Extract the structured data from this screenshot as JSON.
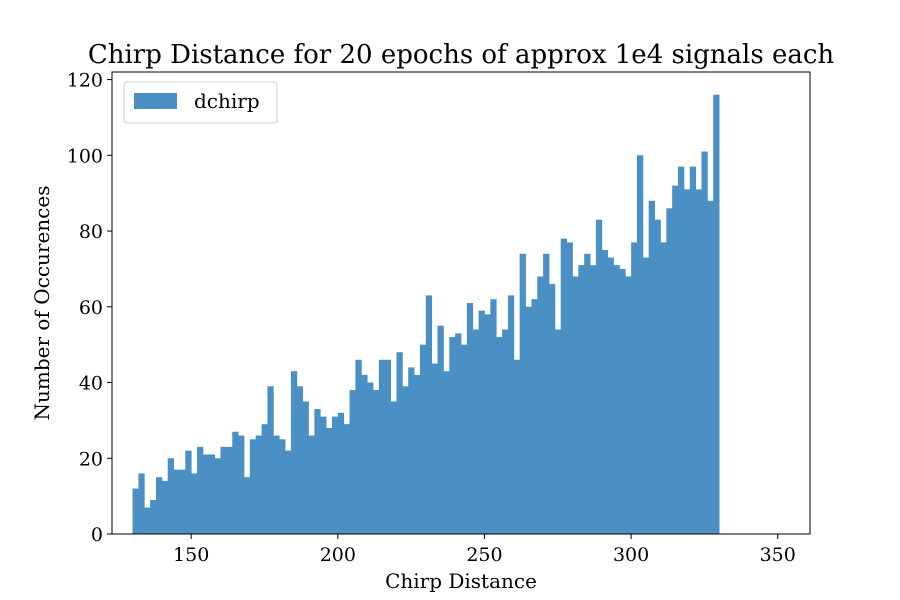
{
  "chart_data": {
    "type": "bar",
    "title": "Chirp Distance for 20 epochs of approx 1e4 signals each",
    "xlabel": "Chirp Distance",
    "ylabel": "Number of Occurences",
    "xlim": [
      123,
      361
    ],
    "ylim": [
      0,
      122
    ],
    "x_ticks": [
      "150",
      "200",
      "250",
      "300",
      "350"
    ],
    "x_tick_values": [
      150,
      200,
      250,
      300,
      350
    ],
    "y_ticks": [
      "0",
      "20",
      "40",
      "60",
      "80",
      "100",
      "120"
    ],
    "y_tick_values": [
      0,
      20,
      40,
      60,
      80,
      100,
      120
    ],
    "legend": {
      "position": "top-left",
      "entries": [
        "dchirp"
      ]
    },
    "grid": false,
    "series": [
      {
        "name": "dchirp",
        "color": "#4a90c4",
        "bin_start": 130,
        "bin_width": 2,
        "values": [
          12,
          16,
          7,
          9,
          15,
          14,
          20,
          17,
          17,
          22,
          16,
          23,
          21,
          21,
          20,
          23,
          23,
          27,
          26,
          15,
          25,
          26,
          29,
          39,
          26,
          25,
          22,
          43,
          39,
          35,
          26,
          33,
          31,
          28,
          31,
          32,
          29,
          38,
          46,
          42,
          40,
          38,
          46,
          46,
          35,
          48,
          39,
          44,
          42,
          50,
          63,
          45,
          55,
          43,
          52,
          53,
          50,
          61,
          54,
          59,
          58,
          62,
          52,
          54,
          63,
          46,
          74,
          60,
          62,
          68,
          74,
          66,
          54,
          78,
          77,
          68,
          71,
          74,
          71,
          83,
          75,
          73,
          71,
          70,
          68,
          77,
          100,
          73,
          88,
          83,
          77,
          86,
          92,
          97,
          91,
          97,
          91,
          101,
          88,
          116
        ]
      }
    ]
  }
}
